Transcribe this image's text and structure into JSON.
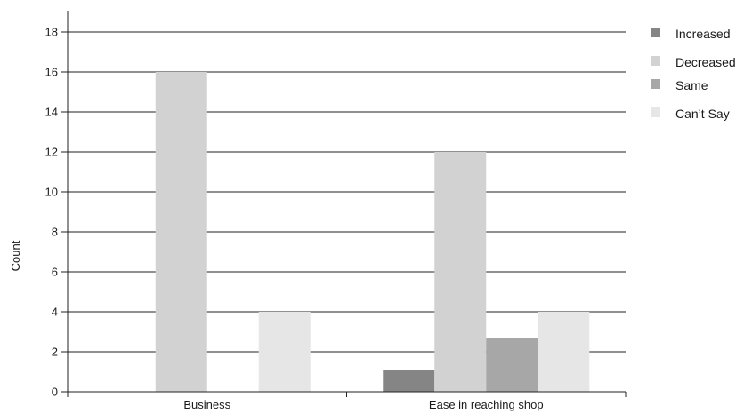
{
  "chart_data": {
    "type": "bar",
    "title": "",
    "xlabel": "",
    "ylabel": "Count",
    "ylim": [
      0,
      18
    ],
    "yticks": [
      0,
      2,
      4,
      6,
      8,
      10,
      12,
      14,
      16,
      18
    ],
    "grid": true,
    "legend_position": "right",
    "categories": [
      "Business",
      "Ease in reaching shop"
    ],
    "series": [
      {
        "name": "Increased",
        "color": "#858585",
        "values": [
          0,
          1.1
        ]
      },
      {
        "name": "Decreased",
        "color": "#d2d2d3",
        "values": [
          16,
          12
        ]
      },
      {
        "name": "Same",
        "color": "#a7a7a8",
        "values": [
          0,
          2.7
        ]
      },
      {
        "name": "Can’t Say",
        "color": "#e6e6e7",
        "values": [
          4,
          4
        ]
      }
    ]
  }
}
